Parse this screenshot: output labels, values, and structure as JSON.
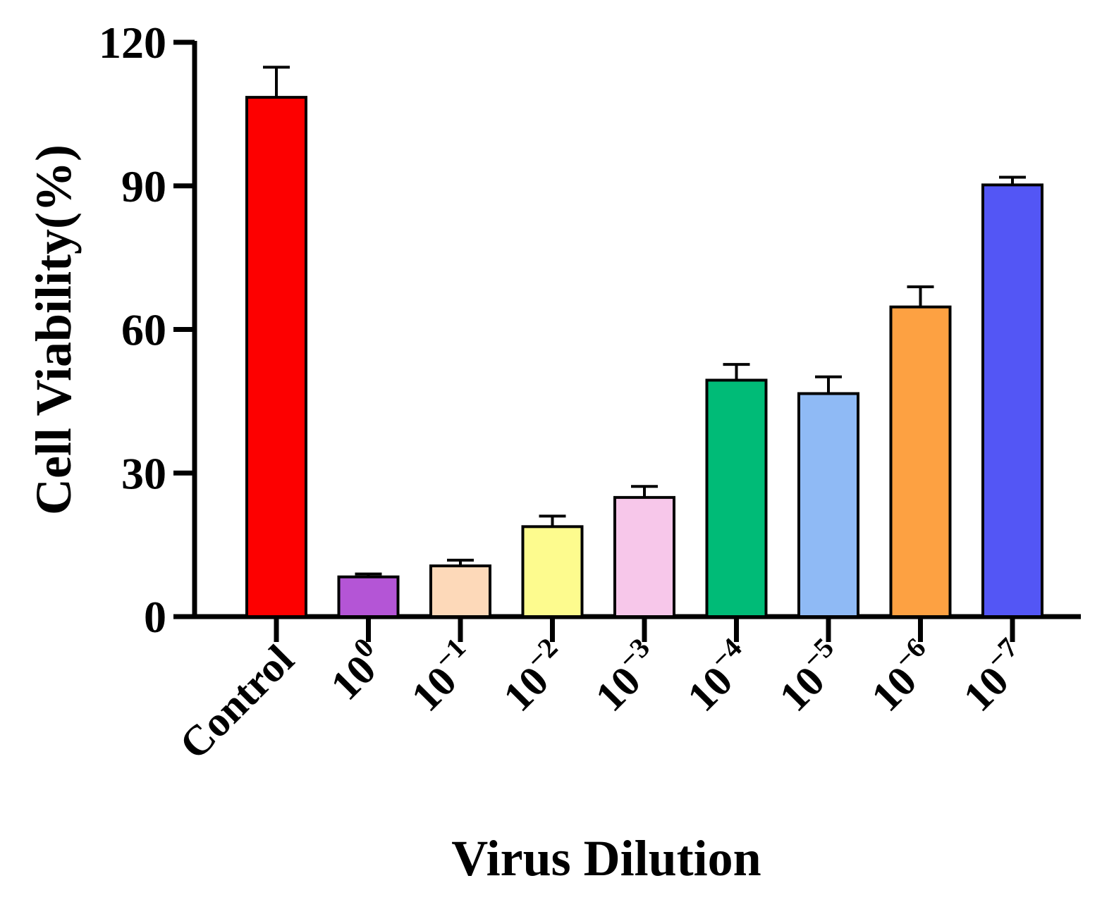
{
  "chart_data": {
    "type": "bar",
    "title": "",
    "xlabel": "Virus Dilution",
    "ylabel": "Cell Viability(%)",
    "ylim": [
      0,
      120
    ],
    "yticks": [
      "0",
      "30",
      "60",
      "90",
      "120"
    ],
    "grid": false,
    "categories": [
      {
        "base": "Control",
        "exp": ""
      },
      {
        "base": "10",
        "exp": "0"
      },
      {
        "base": "10",
        "exp": "−1"
      },
      {
        "base": "10",
        "exp": "−2"
      },
      {
        "base": "10",
        "exp": "−3"
      },
      {
        "base": "10",
        "exp": "−4"
      },
      {
        "base": "10",
        "exp": "−5"
      },
      {
        "base": "10",
        "exp": "−6"
      },
      {
        "base": "10",
        "exp": "−7"
      }
    ],
    "values": [
      108.5,
      8.3,
      10.6,
      18.8,
      24.9,
      49.4,
      46.6,
      64.7,
      90.2
    ],
    "errors": [
      6.3,
      0.6,
      1.2,
      2.2,
      2.3,
      3.3,
      3.5,
      4.2,
      1.6
    ],
    "colors": [
      "#fd0000",
      "#b455d6",
      "#fdd9b9",
      "#fdfb8e",
      "#f7c7ea",
      "#00bb77",
      "#8fbaf5",
      "#fda142",
      "#5356f5"
    ]
  }
}
